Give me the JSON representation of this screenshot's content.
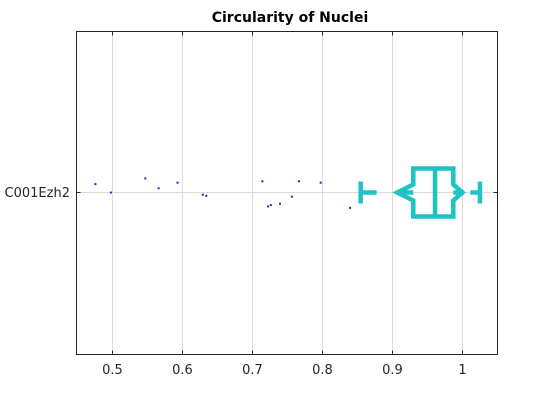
{
  "chart_data": {
    "type": "boxplot",
    "title": "Circularity of Nuclei",
    "xlabel": "",
    "ylabel": "",
    "xlim": [
      0.45,
      1.05
    ],
    "xticks": [
      0.5,
      0.6,
      0.7,
      0.8,
      0.9,
      1
    ],
    "xtick_labels": [
      "0.5",
      "0.6",
      "0.7",
      "0.8",
      "0.9",
      "1"
    ],
    "grid": "x",
    "categories": [
      "C001Ezh2"
    ],
    "box": {
      "whisker_low": 0.855,
      "q1": 0.93,
      "median": 0.961,
      "q3": 0.987,
      "whisker_high": 1.025,
      "notch_low": 0.907,
      "notch_high": 1.0
    },
    "outliers": [
      {
        "x": 0.477,
        "jitter": -0.3
      },
      {
        "x": 0.499,
        "jitter": 0.0
      },
      {
        "x": 0.548,
        "jitter": -0.5
      },
      {
        "x": 0.567,
        "jitter": -0.15
      },
      {
        "x": 0.594,
        "jitter": -0.35
      },
      {
        "x": 0.63,
        "jitter": 0.08
      },
      {
        "x": 0.635,
        "jitter": 0.12
      },
      {
        "x": 0.715,
        "jitter": -0.4
      },
      {
        "x": 0.723,
        "jitter": 0.5
      },
      {
        "x": 0.727,
        "jitter": 0.45
      },
      {
        "x": 0.74,
        "jitter": 0.4
      },
      {
        "x": 0.757,
        "jitter": 0.15
      },
      {
        "x": 0.767,
        "jitter": -0.4
      },
      {
        "x": 0.798,
        "jitter": -0.35
      },
      {
        "x": 0.84,
        "jitter": 0.55
      }
    ],
    "colors": {
      "box": "#1ec4c4",
      "outlier": "#1f2bd6",
      "grid": "#dcdcdc",
      "axis": "#262626"
    }
  }
}
